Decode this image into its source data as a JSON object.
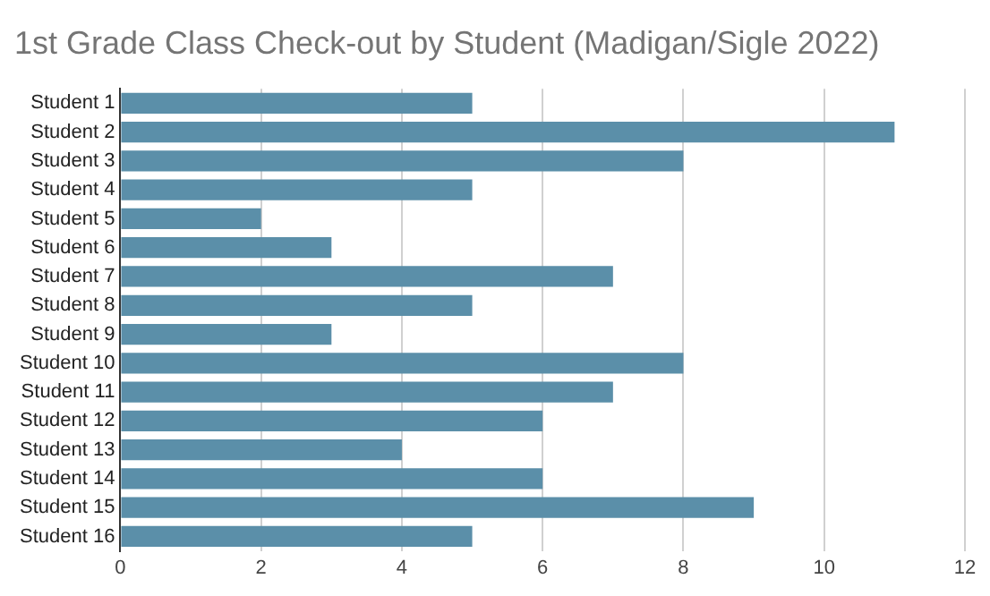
{
  "chart_data": {
    "type": "bar",
    "orientation": "horizontal",
    "title": "1st Grade Class Check-out by Student (Madigan/Sigle 2022)",
    "categories": [
      "Student 1",
      "Student 2",
      "Student 3",
      "Student 4",
      "Student 5",
      "Student 6",
      "Student 7",
      "Student 8",
      "Student 9",
      "Student 10",
      "Student 11",
      "Student 12",
      "Student 13",
      "Student 14",
      "Student 15",
      "Student 16"
    ],
    "values": [
      5,
      11,
      8,
      5,
      2,
      3,
      7,
      5,
      3,
      8,
      7,
      6,
      4,
      6,
      9,
      5
    ],
    "color": "#5b8fa9",
    "xlim": [
      0,
      12
    ],
    "xticks": [
      0,
      2,
      4,
      6,
      8,
      10,
      12
    ],
    "grid": "x",
    "legend": false
  }
}
